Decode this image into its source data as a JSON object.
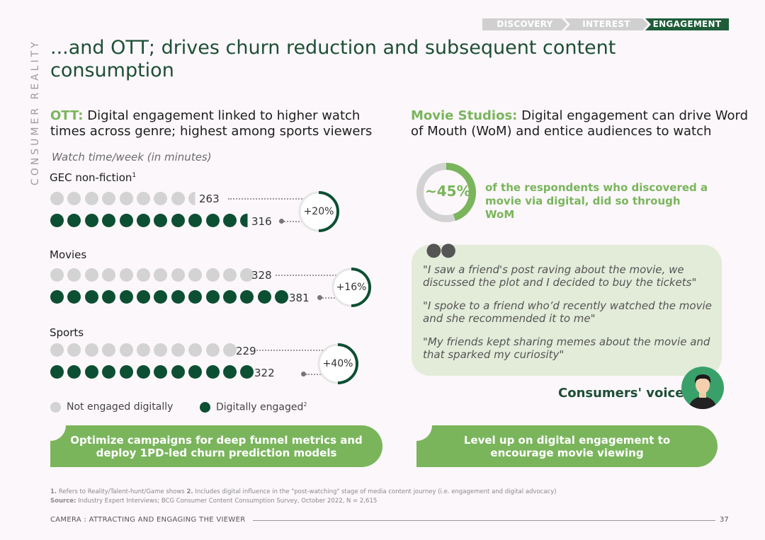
{
  "breadcrumb": [
    "DISCOVERY",
    "INTEREST",
    "ENGAGEMENT"
  ],
  "side_label": "CONSUMER REALITY",
  "title": "...and OTT; drives churn reduction and subsequent content consumption",
  "left": {
    "subtitle_highlight": "OTT:",
    "subtitle_rest": " Digital engagement linked to higher watch times across genre; highest among sports viewers",
    "unit_label": "Watch time/week (in minutes)",
    "categories": [
      {
        "name": "GEC non-fiction",
        "superscript": "1",
        "not_engaged": "263",
        "engaged": "316",
        "uplift": "+20%",
        "uplift_pct": 20
      },
      {
        "name": "Movies",
        "superscript": "",
        "not_engaged": "328",
        "engaged": "381",
        "uplift": "+16%",
        "uplift_pct": 16
      },
      {
        "name": "Sports",
        "superscript": "",
        "not_engaged": "229",
        "engaged": "322",
        "uplift": "+40%",
        "uplift_pct": 40
      }
    ],
    "legend": {
      "not_engaged": "Not engaged digitally",
      "engaged": "Digitally engaged",
      "engaged_sup": "2"
    },
    "cta": "Optimize campaigns for deep funnel metrics and deploy 1PD-led churn prediction models"
  },
  "right": {
    "subtitle_highlight": "Movie Studios:",
    "subtitle_rest": " Digital engagement can drive Word of Mouth (WoM) and entice audiences to watch",
    "donut_value": "~45%",
    "donut_pct": 45,
    "donut_text": "of the respondents who discovered a movie via digital, did so through WoM",
    "quotes": [
      "\"I saw a friend's post raving about the movie, we discussed the plot and I decided to buy the tickets\"",
      "\"I spoke to a friend who’d recently watched the movie and she recommended it to me\"",
      "\"My friends kept sharing memes about the movie and that sparked my curiosity\""
    ],
    "voice_label": "Consumers' voice",
    "cta": "Level up on digital engagement to encourage movie viewing"
  },
  "footnotes": {
    "note1_num": "1.",
    "note1": " Refers to Reality/Talent-hunt/Game shows ",
    "note2_num": "2.",
    "note2": " Includes digital influence in the \"post-watching\" stage of media content journey (i.e. engagement and digital advocacy)",
    "source_label": "Source:",
    "source": " Industry Expert Interviews; BCG Consumer Content Consumption Survey, October 2022, N = 2,615"
  },
  "footer": {
    "left": "CAMERA : ATTRACTING AND ENGAGING THE VIEWER",
    "page": "37"
  },
  "colors": {
    "dark_green": "#0d4f33",
    "light_green": "#7ab55c",
    "grey": "#d3d3d3",
    "title_green": "#1e4f36"
  }
}
